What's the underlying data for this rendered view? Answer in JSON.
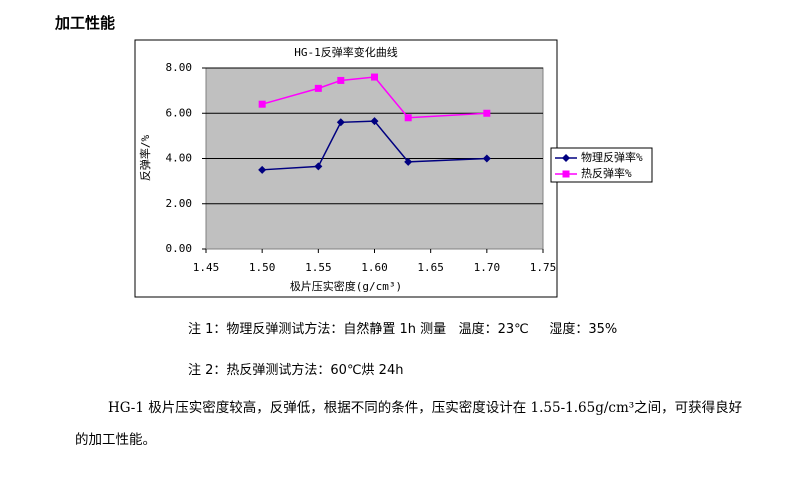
{
  "heading": "加工性能",
  "chart_data": {
    "type": "line",
    "title": "HG-1反弹率变化曲线",
    "x_label": "极片压实密度(g/cm³)",
    "y_label": "反弹率/%",
    "x": [
      1.5,
      1.55,
      1.57,
      1.6,
      1.63,
      1.7
    ],
    "series": [
      {
        "name": "物理反弹率%",
        "color": "#000080",
        "marker": "diamond",
        "values": [
          3.5,
          3.65,
          5.6,
          5.65,
          3.85,
          4.0
        ]
      },
      {
        "name": "热反弹率%",
        "color": "#ff00ff",
        "marker": "square",
        "values": [
          6.4,
          7.1,
          7.45,
          7.6,
          5.8,
          6.0
        ]
      }
    ],
    "xlim": [
      1.45,
      1.75
    ],
    "xticks": [
      1.45,
      {
        "value": 1.5,
        "label": "1.50"
      },
      1.55,
      {
        "value": 1.6,
        "label": "1.60"
      },
      1.65,
      {
        "value": 1.7,
        "label": "1.70"
      },
      1.75
    ],
    "ylim": [
      0,
      8
    ],
    "yticks": [
      {
        "value": 0,
        "label": "0.00"
      },
      {
        "value": 2,
        "label": "2.00"
      },
      {
        "value": 4,
        "label": "4.00"
      },
      {
        "value": 6,
        "label": "6.00"
      },
      {
        "value": 8,
        "label": "8.00"
      }
    ],
    "grid": true,
    "legend": "right"
  },
  "notes": [
    "注 1：物理反弹测试方法：自然静置 1h 测量   温度：23℃     湿度：35%",
    "注 2：热反弹测试方法：60℃烘 24h"
  ],
  "paragraph": "HG-1 极片压实密度较高，反弹低，根据不同的条件，压实密度设计在 1.55-1.65g/cm³之间，可获得良好的加工性能。"
}
